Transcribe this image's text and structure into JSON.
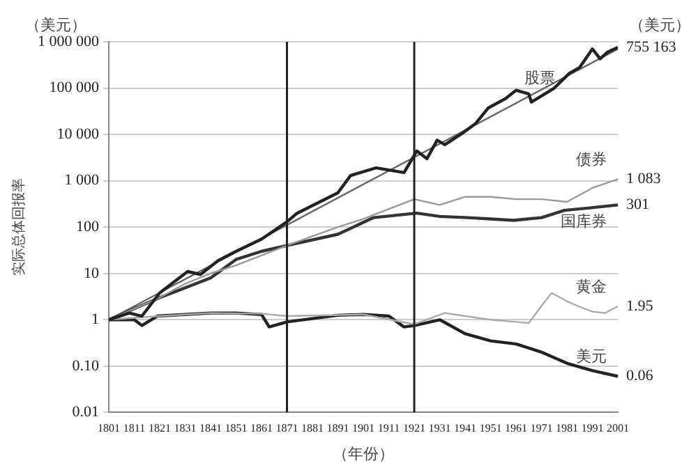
{
  "chart_data": {
    "type": "line",
    "ylabel": "实际总体回报率",
    "xlabel": "（年份）",
    "log": "y",
    "grid": "y",
    "legend": false,
    "marker": "none",
    "line_style": "solid",
    "xlim": [
      1801,
      2001
    ],
    "xticks": [
      1801,
      1811,
      1821,
      1831,
      1841,
      1851,
      1861,
      1871,
      1881,
      1891,
      1901,
      1911,
      1921,
      1931,
      1941,
      1951,
      1961,
      1971,
      1981,
      1991,
      2001
    ],
    "ylim": [
      0.01,
      1000000
    ],
    "yticks": [
      {
        "value": 0.01,
        "label": "0.01"
      },
      {
        "value": 0.1,
        "label": "0.10"
      },
      {
        "value": 1,
        "label": "1"
      },
      {
        "value": 10,
        "label": "10"
      },
      {
        "value": 100,
        "label": "100"
      },
      {
        "value": 1000,
        "label": "1 000"
      },
      {
        "value": 10000,
        "label": "10 000"
      },
      {
        "value": 100000,
        "label": "100 000"
      },
      {
        "value": 1000000,
        "label": "1 000 000"
      }
    ],
    "series": [
      {
        "name": "股票",
        "color": "#222222",
        "x": [
          1801,
          1809,
          1814,
          1821,
          1832,
          1837,
          1844,
          1851,
          1861,
          1871,
          1875,
          1891,
          1896,
          1906,
          1917,
          1922,
          1926,
          1930,
          1933,
          1940,
          1945,
          1950,
          1957,
          1961,
          1966,
          1967,
          1976,
          1982,
          1986,
          1991,
          1994,
          1997,
          2001
        ],
        "values": [
          1,
          1.4,
          1.2,
          3.8,
          11,
          9.5,
          19,
          30,
          55,
          130,
          200,
          550,
          1300,
          1900,
          1500,
          4400,
          3000,
          7500,
          6000,
          10700,
          17000,
          37000,
          60000,
          90000,
          75000,
          50000,
          100000,
          210000,
          280000,
          700000,
          430000,
          600000,
          755163
        ],
        "value_labels": [
          null,
          null,
          null,
          null,
          null,
          null,
          null,
          null,
          null,
          null,
          null,
          null,
          null,
          null,
          null,
          null,
          null,
          null,
          null,
          null,
          null,
          null,
          null,
          null,
          null,
          null,
          null,
          null,
          null,
          null,
          null,
          null,
          "755 163"
        ]
      },
      {
        "name": "债券",
        "color": "#999999",
        "x": [
          1801,
          1821,
          1831,
          1841,
          1851,
          1871,
          1891,
          1901,
          1921,
          1931,
          1941,
          1951,
          1961,
          1971,
          1981,
          1991,
          2001
        ],
        "values": [
          1,
          3,
          6,
          10,
          15,
          40,
          100,
          150,
          400,
          300,
          450,
          450,
          400,
          400,
          350,
          700,
          1083
        ],
        "value_labels": [
          null,
          null,
          null,
          null,
          null,
          null,
          null,
          null,
          null,
          null,
          null,
          null,
          null,
          null,
          null,
          null,
          "1 083"
        ]
      },
      {
        "name": "国库券",
        "color": "#333333",
        "x": [
          1801,
          1821,
          1841,
          1851,
          1861,
          1871,
          1891,
          1905,
          1922,
          1931,
          1942,
          1951,
          1960,
          1971,
          1980,
          1990,
          2001
        ],
        "values": [
          1,
          3,
          8,
          20,
          30,
          40,
          70,
          160,
          200,
          170,
          160,
          150,
          140,
          160,
          230,
          260,
          301
        ],
        "value_labels": [
          null,
          null,
          null,
          null,
          null,
          null,
          null,
          null,
          null,
          null,
          null,
          null,
          null,
          null,
          null,
          null,
          "301"
        ]
      },
      {
        "name": "黄金",
        "color": "#aaaaaa",
        "x": [
          1801,
          1811,
          1821,
          1841,
          1861,
          1871,
          1901,
          1921,
          1933,
          1941,
          1951,
          1961,
          1966,
          1971,
          1975,
          1981,
          1986,
          1991,
          1996,
          2001
        ],
        "values": [
          1,
          1.1,
          1.2,
          1.4,
          1.35,
          1.2,
          1.3,
          0.8,
          1.4,
          1.2,
          1,
          0.9,
          0.85,
          2,
          3.8,
          2.5,
          1.9,
          1.5,
          1.4,
          1.95
        ],
        "value_labels": [
          null,
          null,
          null,
          null,
          null,
          null,
          null,
          null,
          null,
          null,
          null,
          null,
          null,
          null,
          null,
          null,
          null,
          null,
          null,
          "1.95"
        ]
      },
      {
        "name": "美元",
        "color": "#222222",
        "x": [
          1801,
          1811,
          1814,
          1820,
          1831,
          1841,
          1851,
          1861,
          1864,
          1871,
          1891,
          1901,
          1911,
          1917,
          1921,
          1931,
          1941,
          1951,
          1961,
          1971,
          1981,
          1991,
          2001
        ],
        "values": [
          1,
          1.0,
          0.75,
          1.2,
          1.3,
          1.4,
          1.4,
          1.3,
          0.7,
          0.9,
          1.25,
          1.3,
          1.2,
          0.7,
          0.75,
          1.0,
          0.5,
          0.35,
          0.3,
          0.2,
          0.115,
          0.08,
          0.06
        ],
        "value_labels": [
          null,
          null,
          null,
          null,
          null,
          null,
          null,
          null,
          null,
          null,
          null,
          null,
          null,
          null,
          null,
          null,
          null,
          null,
          null,
          null,
          null,
          null,
          "0.06"
        ]
      },
      {
        "color": "#666666",
        "x": [
          1801,
          2001
        ],
        "values": [
          1,
          700000
        ]
      }
    ],
    "ref_lines": [
      {
        "axis": "x",
        "value": 1871,
        "color": "#222222"
      },
      {
        "axis": "x",
        "value": 1921,
        "color": "#222222"
      }
    ],
    "annotations": [
      "（美元）",
      "（美元）"
    ]
  }
}
